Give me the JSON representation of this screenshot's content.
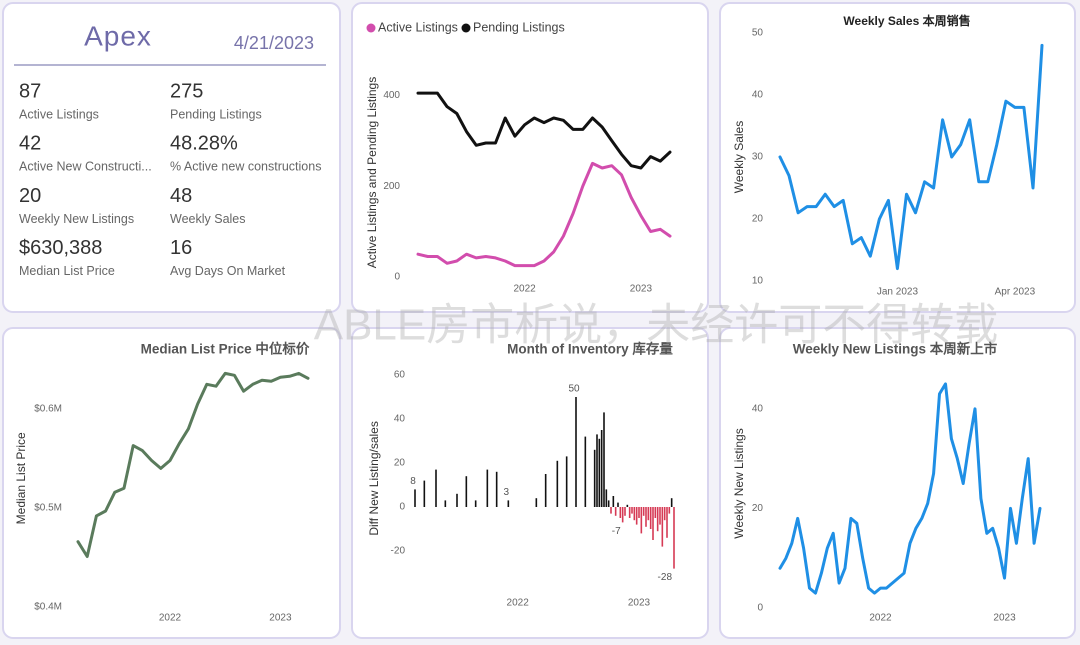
{
  "watermark": "ABLE房市析说，未经许可不得转载",
  "kpi": {
    "title": "Apex",
    "date": "4/21/2023",
    "items": [
      {
        "value": "87",
        "label": "Active Listings"
      },
      {
        "value": "275",
        "label": "Pending Listings"
      },
      {
        "value": "42",
        "label": "Active New Constructi..."
      },
      {
        "value": "48.28%",
        "label": "% Active new constructions"
      },
      {
        "value": "20",
        "label": "Weekly New Listings"
      },
      {
        "value": "48",
        "label": "Weekly Sales"
      },
      {
        "value": "$630,388",
        "label": "Median List Price"
      },
      {
        "value": "16",
        "label": "Avg Days On Market"
      }
    ]
  },
  "chart_data": [
    {
      "type": "line",
      "legend": true,
      "ylabel": "Active Listings and Pending Listings",
      "categories": [
        null,
        null,
        null,
        null,
        null,
        null,
        null,
        null,
        null,
        null,
        null,
        "2022",
        null,
        null,
        null,
        null,
        null,
        null,
        null,
        null,
        null,
        null,
        null,
        "2023",
        null,
        null,
        null
      ],
      "series": [
        {
          "name": "Active Listings",
          "color": "#d24dad",
          "values": [
            50,
            45,
            45,
            30,
            35,
            50,
            42,
            45,
            42,
            35,
            25,
            25,
            25,
            35,
            55,
            90,
            140,
            200,
            250,
            240,
            245,
            225,
            175,
            135,
            100,
            105,
            90
          ]
        },
        {
          "name": "Pending Listings",
          "color": "#111111",
          "values": [
            405,
            405,
            405,
            375,
            360,
            320,
            290,
            295,
            295,
            350,
            310,
            335,
            350,
            340,
            350,
            345,
            325,
            325,
            350,
            330,
            300,
            270,
            245,
            240,
            265,
            255,
            275
          ]
        }
      ],
      "ylim": [
        -20,
        480
      ],
      "yticks": [
        0,
        200,
        400
      ]
    },
    {
      "type": "line",
      "title": "Weekly Sales 本周销售",
      "ylabel": "Weekly Sales",
      "color": "#1f8fe5",
      "categories": [
        null,
        null,
        null,
        null,
        null,
        null,
        null,
        null,
        null,
        null,
        null,
        null,
        null,
        "Jan 2023",
        null,
        null,
        null,
        null,
        null,
        null,
        null,
        null,
        null,
        null,
        null,
        null,
        "Apr 2023",
        null,
        null,
        null
      ],
      "values": [
        30,
        27,
        21,
        22,
        22,
        24,
        22,
        23,
        16,
        17,
        14,
        20,
        23,
        12,
        24,
        21,
        26,
        25,
        36,
        30,
        32,
        36,
        26,
        26,
        32,
        39,
        38,
        38,
        25,
        48
      ],
      "ylim": [
        10,
        50
      ],
      "yticks": [
        10,
        20,
        30,
        40,
        50
      ]
    },
    {
      "type": "line",
      "title": "Median List Price  中位标价",
      "ylabel": "Median List Price",
      "color": "#5a7b5c",
      "categories": [
        null,
        null,
        null,
        null,
        null,
        null,
        null,
        null,
        null,
        null,
        "2022",
        null,
        null,
        null,
        null,
        null,
        null,
        null,
        null,
        null,
        null,
        null,
        "2023",
        null,
        null,
        null
      ],
      "values": [
        466000,
        451000,
        492000,
        497000,
        516000,
        520000,
        563000,
        558000,
        548000,
        540000,
        548000,
        565000,
        580000,
        605000,
        625000,
        623000,
        636000,
        634000,
        618000,
        625000,
        629000,
        628000,
        632000,
        633000,
        636000,
        631000
      ],
      "ylim": [
        400000,
        660000
      ],
      "yticks": [
        {
          "value": 400000,
          "label": "$0.4M"
        },
        {
          "value": 500000,
          "label": "$0.5M"
        },
        {
          "value": 600000,
          "label": "$0.6M"
        }
      ]
    },
    {
      "type": "bar",
      "title": "Month of Inventory 库存量",
      "ylabel": "Diff New Listing/sales",
      "color": "#111111",
      "negative_color": "#d63a55",
      "categories": [
        null,
        null,
        null,
        null,
        null,
        null,
        null,
        null,
        null,
        null,
        null,
        null,
        null,
        null,
        null,
        null,
        null,
        null,
        null,
        null,
        null,
        null,
        null,
        null,
        null,
        null,
        null,
        null,
        null,
        null,
        null,
        null,
        null,
        null,
        null,
        null,
        null,
        null,
        null,
        null,
        null,
        null,
        null,
        null,
        "2022",
        null,
        null,
        null,
        null,
        null,
        null,
        null,
        null,
        null,
        null,
        null,
        null,
        null,
        null,
        null,
        null,
        null,
        null,
        null,
        null,
        null,
        null,
        null,
        null,
        null,
        null,
        null,
        null,
        null,
        null,
        null,
        null,
        null,
        null,
        null,
        null,
        null,
        null,
        null,
        null,
        null,
        null,
        null,
        null,
        null,
        null,
        null,
        null,
        null,
        null,
        null,
        "2023",
        null,
        null,
        null,
        null,
        null,
        null,
        null,
        null,
        null,
        null,
        null,
        null,
        null,
        null,
        null
      ],
      "values": [
        8,
        null,
        null,
        null,
        12,
        null,
        null,
        null,
        null,
        17,
        null,
        null,
        null,
        3,
        null,
        null,
        null,
        null,
        6,
        null,
        null,
        null,
        14,
        null,
        null,
        null,
        3,
        null,
        null,
        null,
        null,
        17,
        null,
        null,
        null,
        16,
        null,
        null,
        null,
        null,
        3,
        null,
        null,
        null,
        null,
        null,
        null,
        null,
        null,
        null,
        null,
        null,
        4,
        null,
        null,
        null,
        15,
        null,
        null,
        null,
        null,
        21,
        null,
        null,
        null,
        23,
        null,
        null,
        null,
        50,
        null,
        null,
        null,
        32,
        null,
        null,
        null,
        26,
        33,
        31,
        35,
        43,
        8,
        3,
        -3,
        5,
        -4,
        2,
        -5,
        -7,
        -4,
        1,
        -5,
        -3,
        -6,
        -8,
        -5,
        -12,
        -4,
        -9,
        -6,
        -10,
        -15,
        -5,
        -11,
        -8,
        -18,
        -6,
        -14,
        -3,
        4,
        -28
      ],
      "value_labels": [
        "8",
        null,
        null,
        null,
        null,
        null,
        null,
        null,
        null,
        null,
        null,
        null,
        null,
        null,
        null,
        null,
        null,
        null,
        null,
        null,
        null,
        null,
        null,
        null,
        null,
        null,
        null,
        null,
        null,
        null,
        null,
        null,
        null,
        null,
        null,
        null,
        null,
        null,
        null,
        null,
        "3",
        null,
        null,
        null,
        null,
        null,
        null,
        null,
        null,
        null,
        null,
        null,
        null,
        null,
        null,
        null,
        null,
        null,
        null,
        null,
        null,
        null,
        null,
        null,
        null,
        null,
        null,
        null,
        null,
        "50",
        null,
        null,
        null,
        null,
        null,
        null,
        null,
        null,
        null,
        null,
        null,
        null,
        null,
        null,
        null,
        null,
        null,
        null,
        null,
        "-7",
        null,
        null,
        null,
        null,
        null,
        null,
        null,
        null,
        null,
        null,
        null,
        null,
        null,
        null,
        null,
        null,
        null,
        null,
        null,
        null,
        null,
        "-28"
      ],
      "ylim": [
        -38,
        64
      ],
      "yticks": [
        -20,
        0,
        20,
        40,
        60
      ]
    },
    {
      "type": "line",
      "title": "Weekly New Listings  本周新上市",
      "ylabel": "Weekly New Listings",
      "color": "#1f8fe5",
      "categories": [
        null,
        null,
        null,
        null,
        null,
        null,
        null,
        null,
        null,
        null,
        null,
        null,
        null,
        null,
        null,
        null,
        null,
        "2022",
        null,
        null,
        null,
        null,
        null,
        null,
        null,
        null,
        null,
        null,
        null,
        null,
        null,
        null,
        null,
        null,
        null,
        null,
        null,
        null,
        "2023",
        null,
        null,
        null,
        null,
        null,
        null
      ],
      "values": [
        8,
        10,
        13,
        18,
        12,
        4,
        3,
        7,
        12,
        15,
        5,
        8,
        18,
        17,
        10,
        4,
        3,
        4,
        4,
        5,
        6,
        7,
        13,
        16,
        18,
        21,
        27,
        43,
        45,
        34,
        30,
        25,
        33,
        40,
        22,
        15,
        16,
        12,
        6,
        20,
        13,
        22,
        30,
        13,
        20
      ],
      "ylim": [
        0,
        50
      ],
      "yticks": [
        0,
        20,
        40
      ]
    }
  ]
}
